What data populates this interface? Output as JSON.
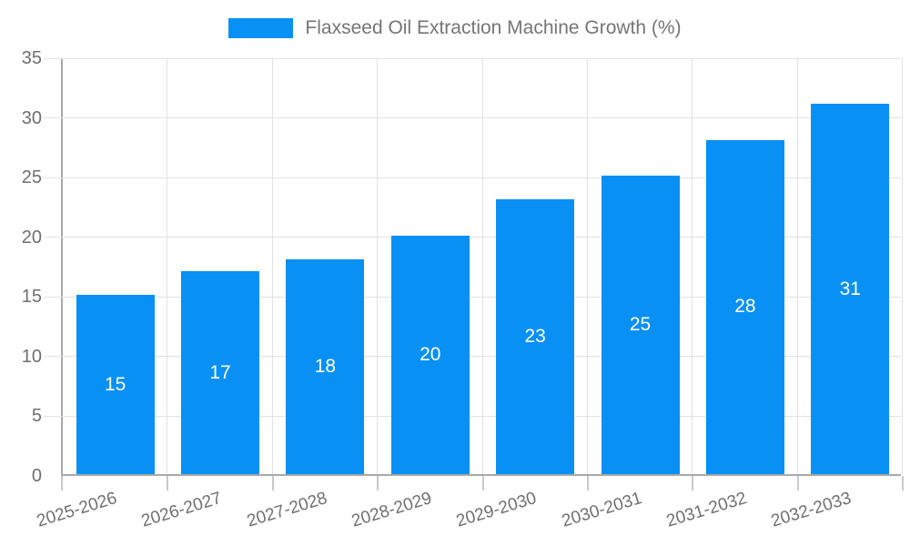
{
  "legend": {
    "label": "Flaxseed Oil Extraction Machine Growth (%)"
  },
  "colors": {
    "bar": "#0890f5",
    "grid": "#e2e2e2",
    "axis": "#a9a9a9",
    "tick": "#c9c9c9",
    "tick_label": "#6f6f6f",
    "legend_label": "#757575",
    "value_label": "#ffffff",
    "background": "#ffffff"
  },
  "chart_data": {
    "type": "bar",
    "title": "Flaxseed Oil Extraction Machine Growth (%)",
    "categories": [
      "2025-2026",
      "2026-2027",
      "2027-2028",
      "2028-2029",
      "2029-2030",
      "2030-2031",
      "2031-2032",
      "2032-2033"
    ],
    "values": [
      15,
      17,
      18,
      20,
      23,
      25,
      28,
      31
    ],
    "xlabel": "",
    "ylabel": "",
    "ylim": [
      0,
      35
    ],
    "yticks": [
      0,
      5,
      10,
      15,
      20,
      25,
      30,
      35
    ],
    "grid": true,
    "legend_position": "top-center",
    "value_labels_inside_bars": true,
    "x_label_rotation_deg": -17
  }
}
